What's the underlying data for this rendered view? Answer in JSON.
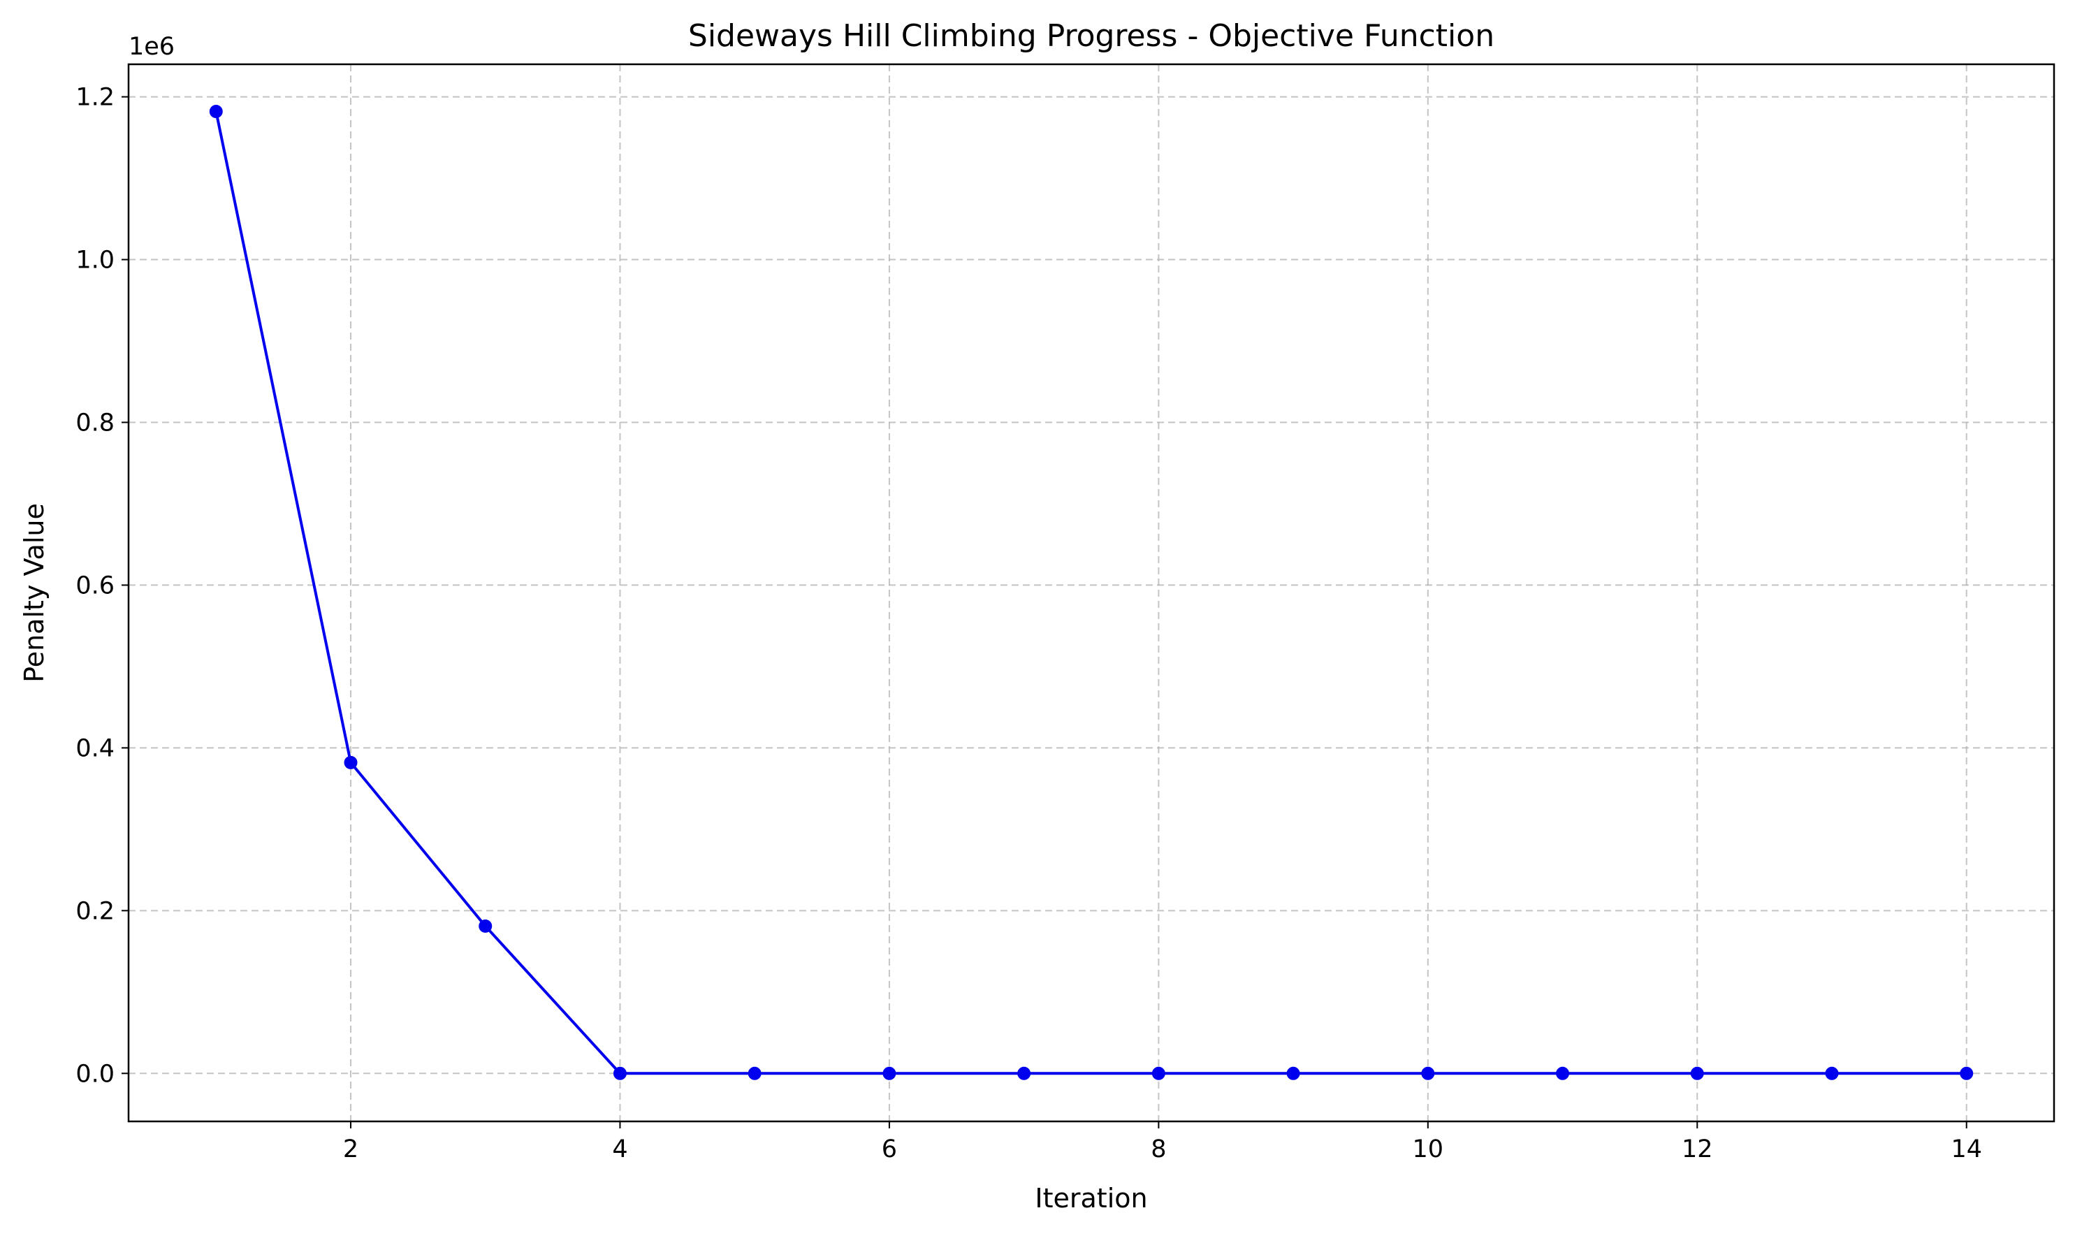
{
  "chart_data": {
    "type": "line",
    "title": "Sideways Hill Climbing Progress - Objective Function",
    "xlabel": "Iteration",
    "ylabel": "Penalty Value",
    "y_offset_label": "1e6",
    "xlim": [
      0.35,
      14.65
    ],
    "ylim": [
      -0.059,
      1.24
    ],
    "x_ticks": [
      2,
      4,
      6,
      8,
      10,
      12,
      14
    ],
    "x_tick_labels": [
      "2",
      "4",
      "6",
      "8",
      "10",
      "12",
      "14"
    ],
    "y_ticks": [
      0.0,
      0.2,
      0.4,
      0.6,
      0.8,
      1.0,
      1.2
    ],
    "y_tick_labels": [
      "0.0",
      "0.2",
      "0.4",
      "0.6",
      "0.8",
      "1.0",
      "1.2"
    ],
    "grid": true,
    "series": [
      {
        "color": "#0000ee",
        "marker": "circle",
        "x": [
          1,
          2,
          3,
          4,
          5,
          6,
          7,
          8,
          9,
          10,
          11,
          12,
          13,
          14
        ],
        "y": [
          1.182,
          0.382,
          0.181,
          0.0,
          0.0,
          0.0,
          0.0,
          0.0,
          0.0,
          0.0,
          0.0,
          0.0,
          0.0,
          0.0
        ]
      }
    ]
  }
}
